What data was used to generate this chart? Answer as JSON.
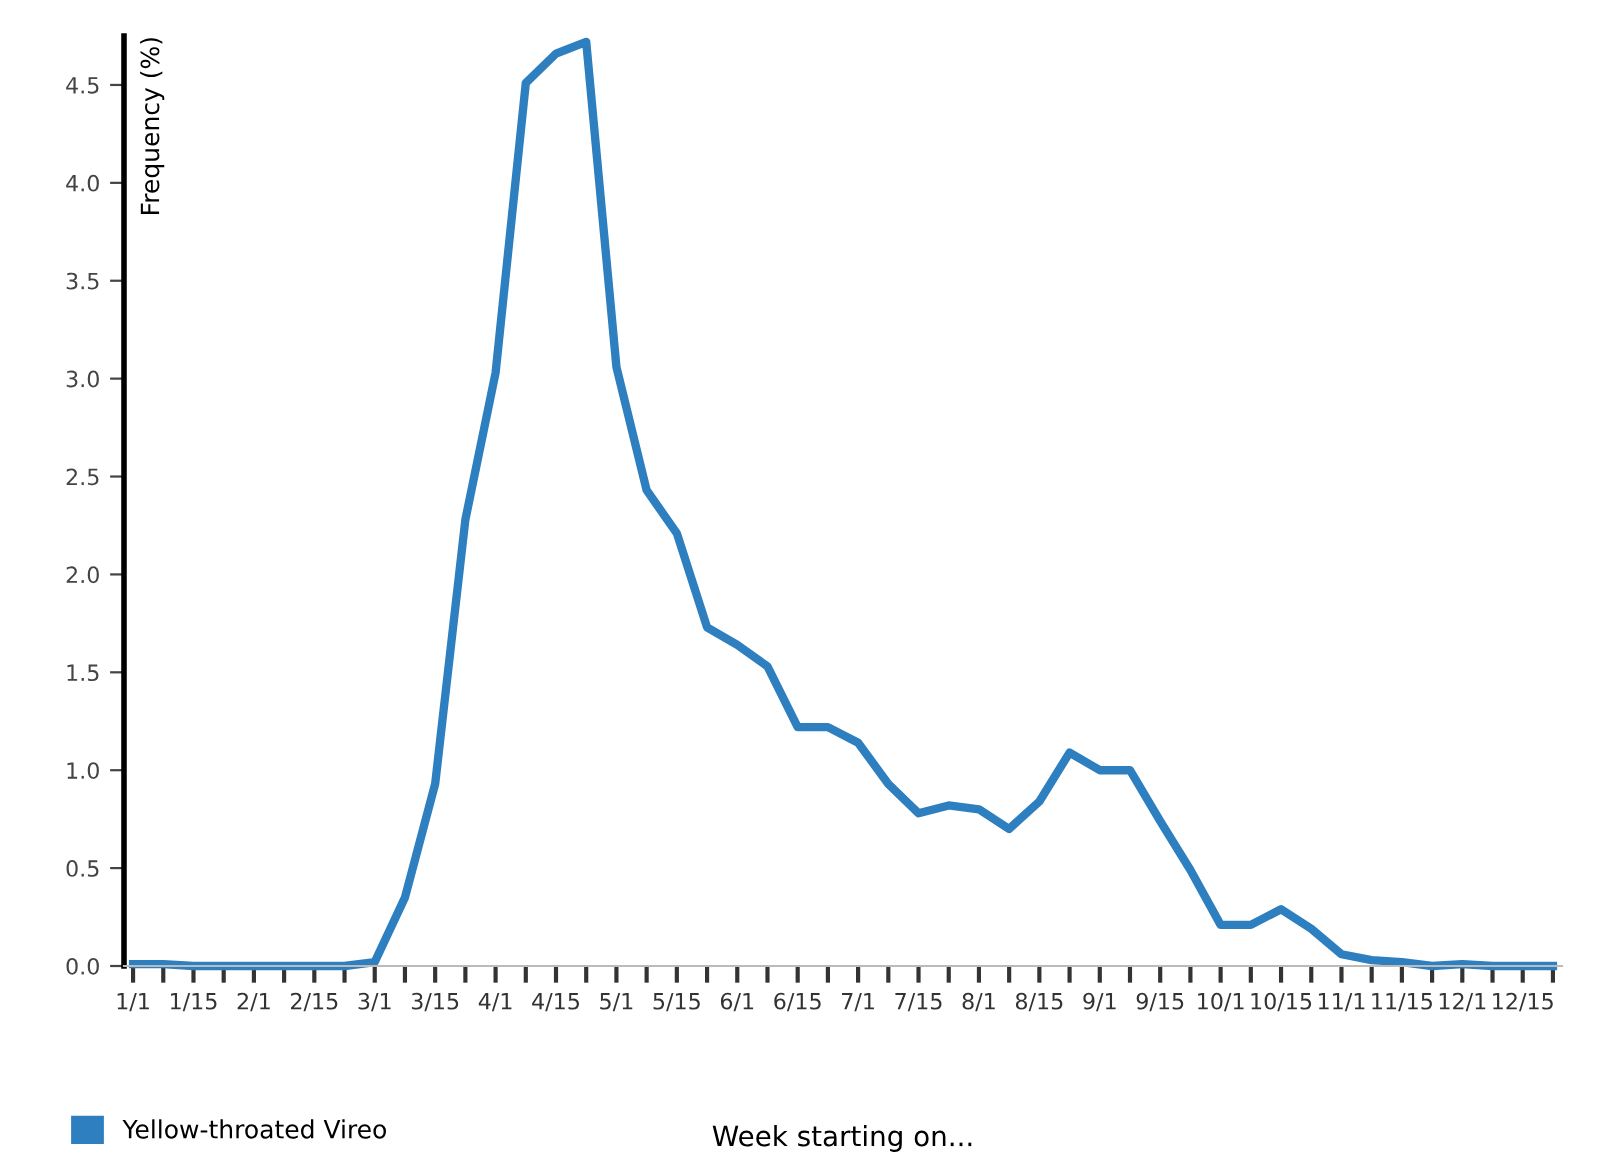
{
  "chart_data": {
    "type": "line",
    "xlabel": "Week starting on...",
    "ylabel": "Frequency (%)",
    "categories": [
      "1/1",
      null,
      "1/15",
      null,
      "2/1",
      null,
      "2/15",
      null,
      "3/1",
      null,
      "3/15",
      null,
      "4/1",
      null,
      "4/15",
      null,
      "5/1",
      null,
      "5/15",
      null,
      "6/1",
      null,
      "6/15",
      null,
      "7/1",
      null,
      "7/15",
      null,
      "8/1",
      null,
      "8/15",
      null,
      "9/1",
      null,
      "9/15",
      null,
      "10/1",
      null,
      "10/15",
      null,
      "11/1",
      null,
      "11/15",
      null,
      "12/1",
      null,
      "12/15",
      null
    ],
    "series": [
      {
        "name": "Yellow-throated Vireo",
        "color": "#2e7fbf",
        "values": [
          0.01,
          0.01,
          0.0,
          0.0,
          0.0,
          0.0,
          0.0,
          0.0,
          0.02,
          0.35,
          0.93,
          2.28,
          3.03,
          4.51,
          4.66,
          4.72,
          3.06,
          2.43,
          2.21,
          1.73,
          1.64,
          1.53,
          1.22,
          1.22,
          1.14,
          0.93,
          0.78,
          0.82,
          0.8,
          0.7,
          0.84,
          1.09,
          1.0,
          1.0,
          0.74,
          0.49,
          0.21,
          0.21,
          0.29,
          0.19,
          0.06,
          0.03,
          0.02,
          0.0,
          0.01,
          0.0,
          0.0,
          0.0
        ]
      }
    ],
    "ylim": [
      0,
      4.75
    ],
    "yticks": [
      {
        "value": 0,
        "label": "0.0"
      },
      0.5,
      {
        "value": 1,
        "label": "1.0"
      },
      1.5,
      {
        "value": 2,
        "label": "2.0"
      },
      2.5,
      {
        "value": 3,
        "label": "3.0"
      },
      3.5,
      {
        "value": 4,
        "label": "4.0"
      },
      4.5
    ],
    "grid": false,
    "legend": "bottom left",
    "marker": "none",
    "line_style": "solid"
  }
}
